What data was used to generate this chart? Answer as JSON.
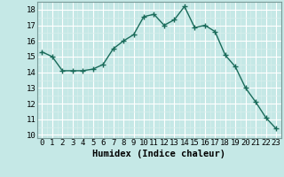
{
  "x": [
    0,
    1,
    2,
    3,
    4,
    5,
    6,
    7,
    8,
    9,
    10,
    11,
    12,
    13,
    14,
    15,
    16,
    17,
    18,
    19,
    20,
    21,
    22,
    23
  ],
  "y": [
    15.3,
    15.0,
    14.1,
    14.1,
    14.1,
    14.2,
    14.5,
    15.5,
    16.0,
    16.4,
    17.55,
    17.7,
    17.0,
    17.35,
    18.2,
    16.85,
    17.0,
    16.6,
    15.1,
    14.35,
    13.0,
    12.1,
    11.1,
    10.4
  ],
  "line_color": "#1a6b5a",
  "marker": "+",
  "marker_size": 4,
  "bg_color": "#c5e8e6",
  "grid_major_color": "#ffffff",
  "grid_minor_color": "#d8efed",
  "xlabel": "Humidex (Indice chaleur)",
  "ylim": [
    9.8,
    18.5
  ],
  "xlim": [
    -0.5,
    23.5
  ],
  "yticks": [
    10,
    11,
    12,
    13,
    14,
    15,
    16,
    17,
    18
  ],
  "xticks": [
    0,
    1,
    2,
    3,
    4,
    5,
    6,
    7,
    8,
    9,
    10,
    11,
    12,
    13,
    14,
    15,
    16,
    17,
    18,
    19,
    20,
    21,
    22,
    23
  ],
  "xlabel_fontsize": 7.5,
  "tick_fontsize": 6.5,
  "linewidth": 1.0
}
